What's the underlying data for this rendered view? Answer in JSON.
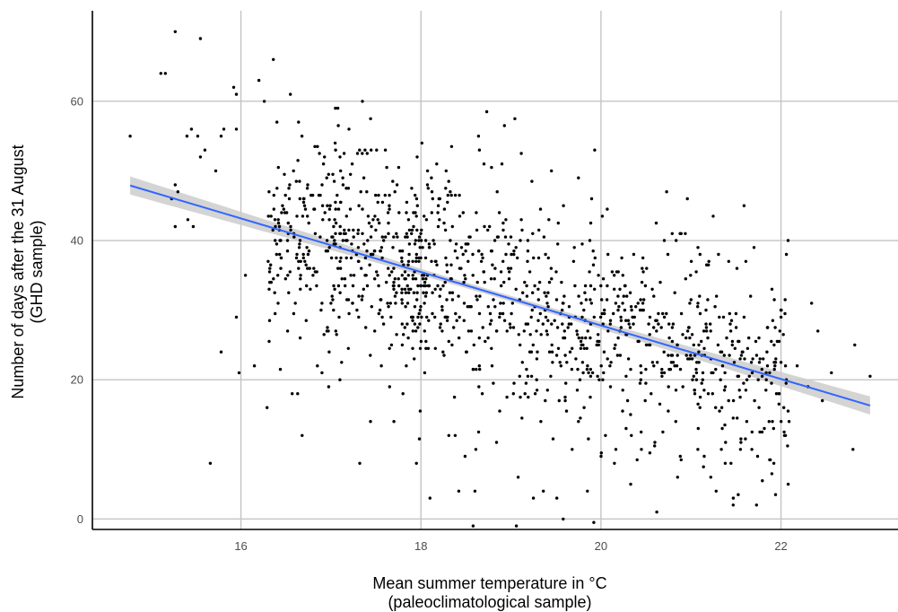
{
  "chart_data": {
    "type": "scatter",
    "xlabel_line1": "Mean summer temperature in °C",
    "xlabel_line2": "(paleoclimatological sample)",
    "ylabel_line1": "Number of days after the 31 August",
    "ylabel_line2": "(GHD sample)",
    "xlim": [
      14.35,
      23.3
    ],
    "ylim": [
      -1.5,
      73
    ],
    "x_ticks": [
      16,
      18,
      20,
      22
    ],
    "y_ticks": [
      0,
      20,
      40,
      60
    ],
    "grid": true,
    "legend": "none",
    "point_color": "#000000",
    "trend": {
      "method": "linear regression with confidence band",
      "color": "#3366FF",
      "band_color": "#CCCCCC",
      "start": {
        "x": 14.77,
        "y": 47.9
      },
      "end": {
        "x": 22.99,
        "y": 16.3
      },
      "band_halfwidth_ends": 1.3,
      "band_halfwidth_mid": 0.4
    },
    "sample_points": [
      [
        14.77,
        55
      ],
      [
        15.27,
        70
      ],
      [
        15.11,
        64
      ],
      [
        15.16,
        64
      ],
      [
        15.55,
        69
      ],
      [
        15.4,
        55
      ],
      [
        15.45,
        56
      ],
      [
        15.52,
        55
      ],
      [
        15.6,
        53
      ],
      [
        15.23,
        46
      ],
      [
        15.27,
        48
      ],
      [
        15.3,
        47
      ],
      [
        15.27,
        42
      ],
      [
        15.41,
        43
      ],
      [
        15.47,
        42
      ],
      [
        15.55,
        52
      ],
      [
        15.78,
        55
      ],
      [
        15.81,
        56
      ],
      [
        15.72,
        50
      ],
      [
        15.66,
        8
      ],
      [
        15.78,
        24
      ],
      [
        15.92,
        62
      ],
      [
        15.95,
        61
      ],
      [
        15.95,
        56
      ],
      [
        15.95,
        29
      ],
      [
        15.98,
        21
      ],
      [
        16.05,
        35
      ],
      [
        16.15,
        22
      ],
      [
        16.2,
        63
      ],
      [
        16.26,
        60
      ],
      [
        16.29,
        16
      ],
      [
        16.36,
        66
      ],
      [
        16.55,
        61
      ],
      [
        16.57,
        18
      ],
      [
        16.63,
        18
      ],
      [
        16.68,
        12
      ],
      [
        16.64,
        57
      ],
      [
        16.85,
        22
      ],
      [
        16.9,
        21
      ],
      [
        17.05,
        59
      ],
      [
        17.1,
        20
      ],
      [
        17.2,
        56
      ],
      [
        17.32,
        8
      ],
      [
        17.35,
        60
      ],
      [
        17.44,
        14
      ],
      [
        17.7,
        14
      ],
      [
        17.8,
        18
      ],
      [
        17.95,
        8
      ],
      [
        18.1,
        3
      ],
      [
        18.12,
        44
      ],
      [
        18.2,
        46
      ],
      [
        18.28,
        50
      ],
      [
        18.31,
        12
      ],
      [
        18.38,
        12
      ],
      [
        18.42,
        4
      ],
      [
        18.49,
        9
      ],
      [
        18.58,
        -1
      ],
      [
        18.6,
        4
      ],
      [
        18.64,
        55
      ],
      [
        18.65,
        53
      ],
      [
        18.84,
        11
      ],
      [
        18.9,
        51
      ],
      [
        19.06,
        -1
      ],
      [
        19.08,
        6
      ],
      [
        19.25,
        3
      ],
      [
        19.36,
        4
      ],
      [
        19.45,
        50
      ],
      [
        19.51,
        3
      ],
      [
        19.58,
        0
      ],
      [
        19.68,
        10
      ],
      [
        19.75,
        14
      ],
      [
        19.85,
        4
      ],
      [
        19.92,
        -0.5
      ],
      [
        19.93,
        53
      ],
      [
        20.05,
        12
      ],
      [
        20.15,
        8
      ],
      [
        20.33,
        5
      ],
      [
        20.45,
        10
      ],
      [
        20.62,
        1
      ],
      [
        20.73,
        47
      ],
      [
        20.96,
        46
      ],
      [
        21.08,
        13
      ],
      [
        21.22,
        6
      ],
      [
        21.28,
        4
      ],
      [
        21.38,
        8
      ],
      [
        21.47,
        3
      ],
      [
        21.55,
        10
      ],
      [
        21.59,
        45
      ],
      [
        21.7,
        39
      ],
      [
        21.85,
        22
      ],
      [
        21.9,
        33
      ],
      [
        21.95,
        18
      ],
      [
        22.0,
        29
      ],
      [
        22.05,
        12
      ],
      [
        22.06,
        38
      ],
      [
        22.08,
        5
      ],
      [
        22.18,
        22
      ],
      [
        22.3,
        19
      ],
      [
        22.34,
        31
      ],
      [
        22.41,
        27
      ],
      [
        22.46,
        17
      ],
      [
        22.56,
        21
      ],
      [
        22.8,
        10
      ],
      [
        22.82,
        25
      ],
      [
        22.99,
        20.5
      ]
    ]
  }
}
